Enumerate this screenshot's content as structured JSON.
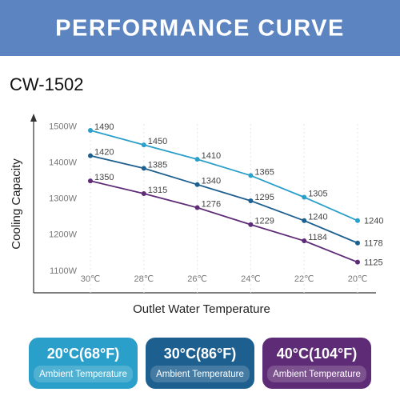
{
  "chart_data": {
    "type": "line",
    "header": "PERFORMANCE CURVE",
    "title": "CW-1502",
    "y_label": "Cooling Capacity",
    "x_label": "Outlet Water Temperature",
    "categories": [
      "30℃",
      "28℃",
      "26℃",
      "24℃",
      "22℃",
      "20℃"
    ],
    "ylim": [
      1040,
      1530
    ],
    "yticks": [
      {
        "value": 1100,
        "label": "1100W"
      },
      {
        "value": 1200,
        "label": "1200W"
      },
      {
        "value": 1300,
        "label": "1300W"
      },
      {
        "value": 1400,
        "label": "1400W"
      },
      {
        "value": 1500,
        "label": "1500W"
      }
    ],
    "legend_note": "Ambient Temperature",
    "series": [
      {
        "name": "20°C(68°F)",
        "color": "#2a9fc9",
        "values": [
          1490,
          1450,
          1410,
          1365,
          1305,
          1240
        ]
      },
      {
        "name": "30°C(86°F)",
        "color": "#1d5f8e",
        "values": [
          1420,
          1385,
          1340,
          1295,
          1240,
          1178
        ]
      },
      {
        "name": "40°C(104°F)",
        "color": "#5e2b76",
        "values": [
          1350,
          1315,
          1276,
          1229,
          1184,
          1125
        ]
      }
    ]
  }
}
